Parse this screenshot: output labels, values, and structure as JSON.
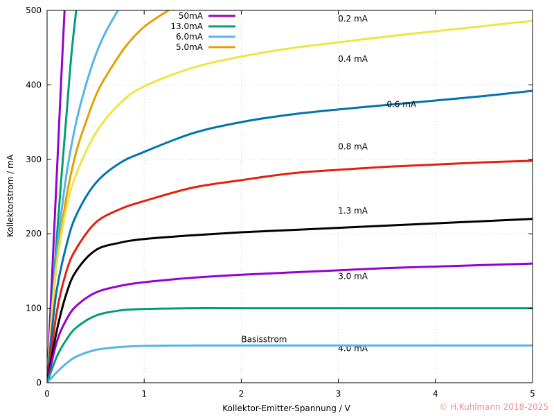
{
  "chart_data": {
    "type": "line",
    "xlabel": "Kollektor-Emitter-Spannung / V",
    "ylabel": "Kollektorstrom / mA",
    "xlim": [
      0,
      5
    ],
    "ylim": [
      0,
      500
    ],
    "xticks": [
      0,
      1,
      2,
      3,
      4,
      5
    ],
    "yticks": [
      0,
      100,
      200,
      300,
      400,
      500
    ],
    "grid": true,
    "legend_position": "top-left",
    "annotation": "Basisstrom",
    "annotation_pos": [
      2.0,
      58
    ],
    "series": [
      {
        "name": "50mA",
        "color": "#9400d3",
        "legend": true,
        "x": [
          0,
          0.05,
          0.1,
          0.15,
          0.18
        ],
        "y": [
          0,
          140,
          280,
          420,
          500
        ]
      },
      {
        "name": "13.0mA",
        "color": "#009e73",
        "legend": true,
        "x": [
          0,
          0.05,
          0.1,
          0.15,
          0.2,
          0.25,
          0.3
        ],
        "y": [
          0,
          100,
          195,
          280,
          360,
          440,
          500
        ]
      },
      {
        "name": "6.0mA",
        "color": "#56b4e9",
        "legend": true,
        "x": [
          0,
          0.05,
          0.1,
          0.2,
          0.3,
          0.4,
          0.5,
          0.6,
          0.73
        ],
        "y": [
          0,
          95,
          175,
          280,
          350,
          400,
          440,
          470,
          500
        ]
      },
      {
        "name": "5.0mA",
        "color": "#e69f00",
        "legend": true,
        "x": [
          0,
          0.05,
          0.1,
          0.2,
          0.3,
          0.4,
          0.5,
          0.6,
          0.8,
          1.0,
          1.25
        ],
        "y": [
          0,
          90,
          160,
          250,
          310,
          350,
          385,
          410,
          450,
          478,
          500
        ]
      },
      {
        "name": "4.0 mA",
        "color": "#f0e442",
        "label_at": [
          3.15,
          46
        ],
        "x": [
          0,
          0.05,
          0.1,
          0.2,
          0.3,
          0.5,
          0.75,
          1.0,
          1.5,
          2.0,
          2.5,
          3.0,
          3.5,
          4.0,
          4.5,
          5.0
        ],
        "y": [
          0,
          95,
          160,
          235,
          280,
          335,
          375,
          398,
          423,
          438,
          449,
          457,
          465,
          472,
          479,
          486
        ]
      },
      {
        "name": "3.0 mA",
        "color": "#0072b2",
        "label_at": [
          3.15,
          143
        ],
        "x": [
          0,
          0.05,
          0.1,
          0.2,
          0.3,
          0.5,
          0.75,
          1.0,
          1.5,
          2.0,
          2.5,
          3.0,
          3.5,
          4.0,
          4.5,
          5.0
        ],
        "y": [
          0,
          70,
          125,
          185,
          225,
          268,
          295,
          310,
          335,
          350,
          360,
          367,
          373,
          379,
          385,
          392
        ]
      },
      {
        "name": "1.3 mA",
        "color": "#e51e10",
        "label_at": [
          3.15,
          231
        ],
        "x": [
          0,
          0.1,
          0.2,
          0.3,
          0.5,
          0.75,
          1.0,
          1.5,
          2.0,
          2.5,
          3.0,
          3.5,
          4.0,
          4.5,
          5.0
        ],
        "y": [
          0,
          95,
          150,
          180,
          215,
          233,
          244,
          262,
          272,
          281,
          286,
          290,
          293,
          296,
          298
        ]
      },
      {
        "name": "0.8 mA",
        "color": "#000000",
        "label_at": [
          3.15,
          317
        ],
        "x": [
          0,
          0.1,
          0.2,
          0.3,
          0.5,
          0.75,
          1.0,
          1.5,
          2.0,
          2.5,
          3.0,
          3.5,
          4.0,
          4.5,
          5.0
        ],
        "y": [
          0,
          70,
          120,
          150,
          178,
          188,
          193,
          198,
          202,
          205,
          208,
          211,
          214,
          217,
          220
        ]
      },
      {
        "name": "0.6 mA",
        "color": "#9400d3",
        "label_at": [
          3.65,
          374
        ],
        "x": [
          0,
          0.1,
          0.2,
          0.3,
          0.5,
          0.75,
          1.0,
          1.5,
          2.0,
          2.5,
          3.0,
          3.5,
          4.0,
          4.5,
          5.0
        ],
        "y": [
          0,
          55,
          85,
          103,
          121,
          130,
          135,
          141,
          145,
          148,
          151,
          154,
          156,
          158,
          160
        ]
      },
      {
        "name": "0.4 mA",
        "color": "#009e73",
        "label_at": [
          3.15,
          435
        ],
        "x": [
          0,
          0.1,
          0.2,
          0.3,
          0.5,
          0.75,
          1.0,
          1.5,
          2.0,
          3.0,
          4.0,
          5.0
        ],
        "y": [
          0,
          35,
          58,
          74,
          90,
          97,
          99,
          100,
          100,
          100,
          100,
          100
        ]
      },
      {
        "name": "0.2 mA",
        "color": "#56b4e9",
        "label_at": [
          3.15,
          489
        ],
        "x": [
          0,
          0.1,
          0.2,
          0.3,
          0.5,
          0.75,
          1.0,
          1.5,
          2.0,
          3.0,
          4.0,
          5.0
        ],
        "y": [
          0,
          14,
          26,
          35,
          44,
          48,
          49.5,
          50,
          50,
          50,
          50,
          50
        ]
      }
    ]
  },
  "copyright": "© H.Kuhlmann 2018-2025"
}
